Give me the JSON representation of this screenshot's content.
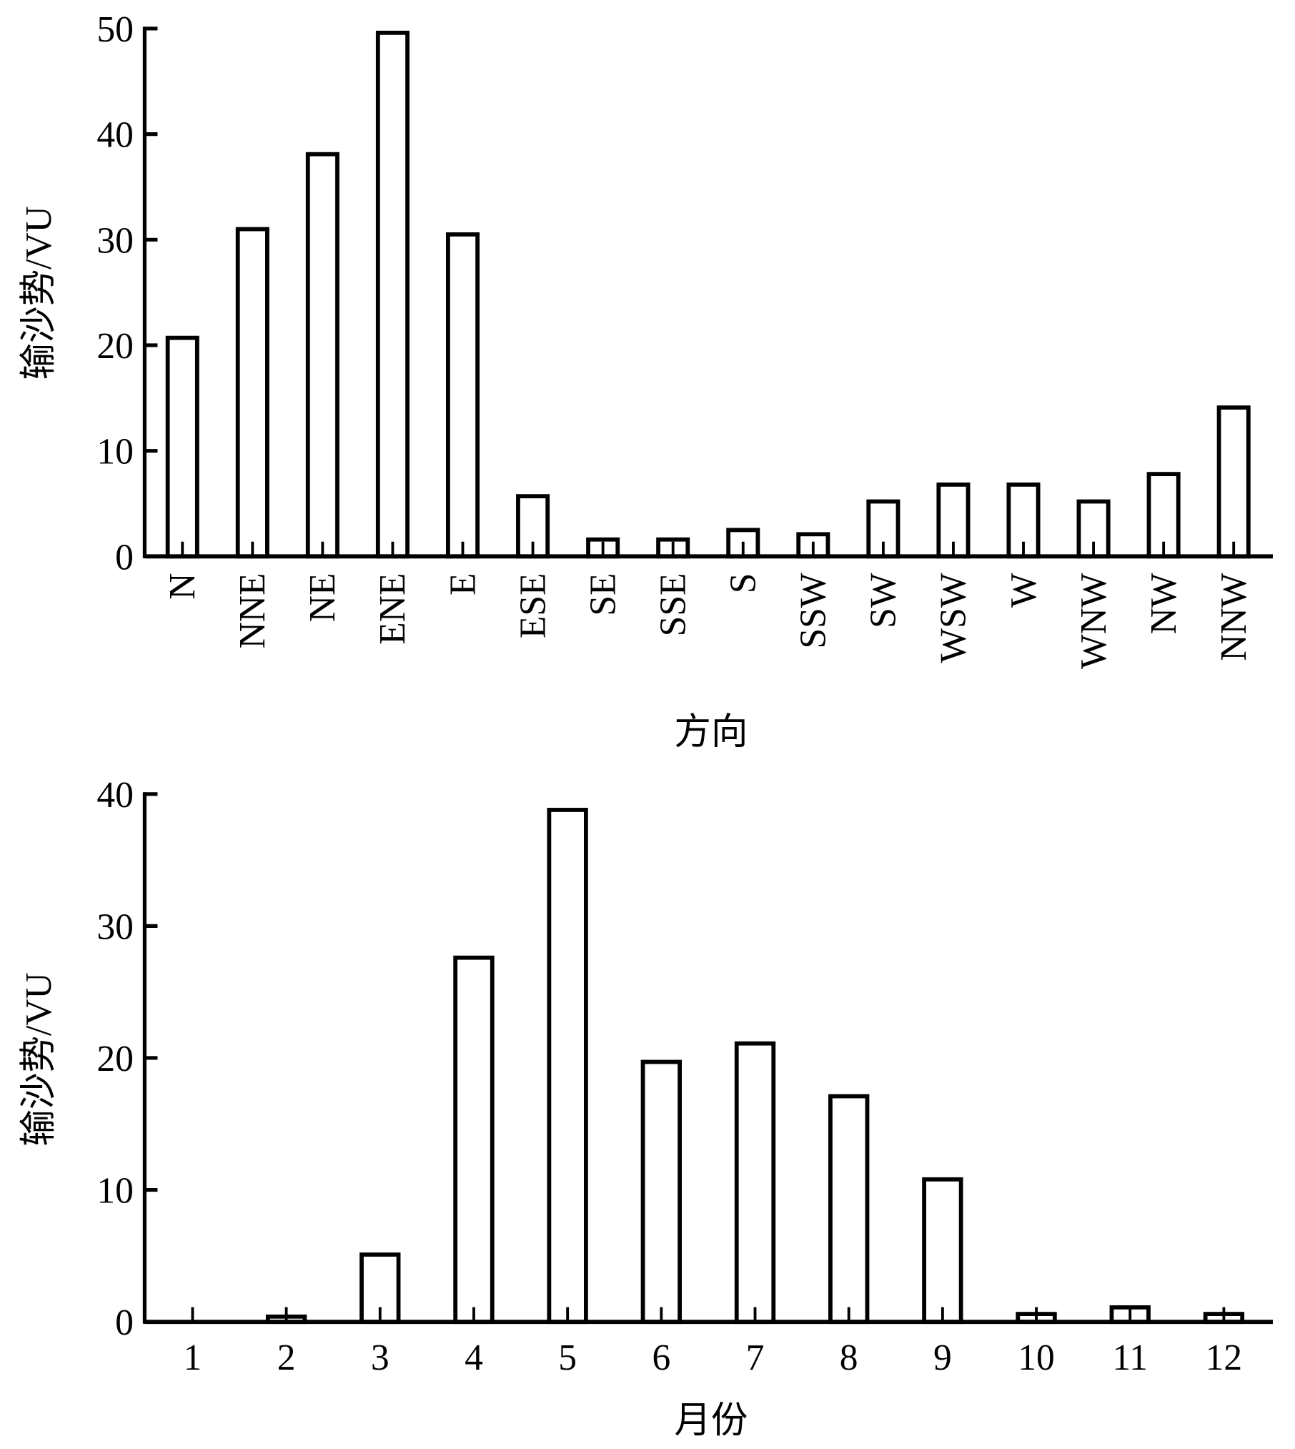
{
  "chart_data": [
    {
      "type": "bar",
      "xlabel": "方向",
      "ylabel": "输沙势/VU",
      "ylim": [
        0,
        50
      ],
      "yticks": [
        "0",
        "10",
        "20",
        "30",
        "40",
        "50"
      ],
      "grid": false,
      "categories": [
        "N",
        "NNE",
        "NE",
        "ENE",
        "E",
        "ESE",
        "SE",
        "SSE",
        "S",
        "SSW",
        "SW",
        "WSW",
        "W",
        "WNW",
        "NW",
        "NNW"
      ],
      "values": [
        20.7,
        31.0,
        38.1,
        49.6,
        30.5,
        5.7,
        1.6,
        1.6,
        2.5,
        2.1,
        5.2,
        6.8,
        6.8,
        5.2,
        7.8,
        14.1
      ]
    },
    {
      "type": "bar",
      "xlabel": "月份",
      "ylabel": "输沙势/VU",
      "ylim": [
        0,
        40
      ],
      "yticks": [
        "0",
        "10",
        "20",
        "30",
        "40"
      ],
      "grid": false,
      "categories": [
        "1",
        "2",
        "3",
        "4",
        "5",
        "6",
        "7",
        "8",
        "9",
        "10",
        "11",
        "12"
      ],
      "values": [
        0,
        0.4,
        5.1,
        27.6,
        38.8,
        19.7,
        21.1,
        17.1,
        10.8,
        0.6,
        1.1,
        0.6
      ]
    }
  ],
  "colors": {
    "stroke": "#000000",
    "fill": "#ffffff"
  }
}
